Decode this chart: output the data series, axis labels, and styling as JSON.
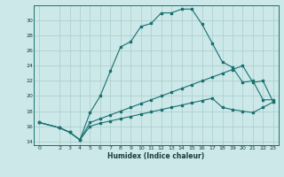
{
  "xlabel": "Humidex (Indice chaleur)",
  "bg_color": "#cce8e8",
  "line_color": "#1a7070",
  "grid_color": "#aacccc",
  "line1_x": [
    0,
    2,
    3,
    4,
    5,
    6,
    7,
    8,
    9,
    10,
    11,
    12,
    13,
    14,
    15,
    16,
    17,
    18,
    19,
    20,
    21,
    22,
    23
  ],
  "line1_y": [
    16.5,
    15.8,
    15.2,
    14.2,
    17.8,
    20.0,
    23.3,
    26.5,
    27.2,
    29.2,
    29.6,
    31.0,
    31.0,
    31.5,
    31.5,
    29.5,
    27.0,
    24.5,
    23.8,
    21.8,
    22.0,
    19.5,
    19.5
  ],
  "line2_x": [
    0,
    2,
    3,
    4,
    5,
    6,
    7,
    8,
    9,
    10,
    11,
    12,
    13,
    14,
    15,
    16,
    17,
    18,
    19,
    20,
    21,
    22,
    23
  ],
  "line2_y": [
    16.5,
    15.8,
    15.2,
    14.2,
    16.5,
    17.0,
    17.5,
    18.0,
    18.5,
    19.0,
    19.5,
    20.0,
    20.5,
    21.0,
    21.5,
    22.0,
    22.5,
    23.0,
    23.5,
    24.0,
    21.8,
    22.0,
    19.2
  ],
  "line3_x": [
    0,
    2,
    3,
    4,
    5,
    6,
    7,
    8,
    9,
    10,
    11,
    12,
    13,
    14,
    15,
    16,
    17,
    18,
    19,
    20,
    21,
    22,
    23
  ],
  "line3_y": [
    16.5,
    15.8,
    15.2,
    14.2,
    16.0,
    16.4,
    16.7,
    17.0,
    17.3,
    17.6,
    17.9,
    18.2,
    18.5,
    18.8,
    19.1,
    19.4,
    19.7,
    18.5,
    18.2,
    18.0,
    17.8,
    18.5,
    19.2
  ],
  "xlim": [
    -0.5,
    23.5
  ],
  "ylim": [
    13.5,
    32.0
  ],
  "xticks": [
    0,
    2,
    3,
    4,
    5,
    6,
    7,
    8,
    9,
    10,
    11,
    12,
    13,
    14,
    15,
    16,
    17,
    18,
    19,
    20,
    21,
    22,
    23
  ],
  "yticks": [
    14,
    16,
    18,
    20,
    22,
    24,
    26,
    28,
    30
  ],
  "tick_fontsize": 4.5,
  "xlabel_fontsize": 5.5
}
